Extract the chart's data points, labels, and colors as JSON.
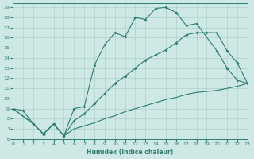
{
  "xlabel": "Humidex (Indice chaleur)",
  "bg_color": "#cde8e5",
  "grid_color": "#b0d0cc",
  "line_color": "#2e7d6e",
  "xlim": [
    0,
    23
  ],
  "ylim": [
    6,
    19.4
  ],
  "xticks": [
    0,
    1,
    2,
    3,
    4,
    5,
    6,
    7,
    8,
    9,
    10,
    11,
    12,
    13,
    14,
    15,
    16,
    17,
    18,
    19,
    20,
    21,
    22,
    23
  ],
  "yticks": [
    6,
    7,
    8,
    9,
    10,
    11,
    12,
    13,
    14,
    15,
    16,
    17,
    18,
    19
  ],
  "series": [
    {
      "x": [
        0,
        1,
        2,
        3,
        4,
        5,
        6,
        7,
        8,
        9,
        10,
        11,
        12,
        13,
        14,
        15,
        16,
        17,
        18,
        20,
        21,
        22,
        23
      ],
      "y": [
        9.0,
        8.8,
        7.5,
        6.5,
        7.5,
        6.3,
        9.0,
        9.2,
        13.3,
        15.3,
        16.5,
        16.1,
        18.0,
        17.8,
        18.9,
        19.0,
        18.5,
        17.2,
        17.4,
        14.7,
        13.0,
        11.8,
        11.5
      ],
      "marker": true
    },
    {
      "x": [
        0,
        2,
        3,
        4,
        5,
        6,
        7,
        8,
        9,
        10,
        11,
        12,
        13,
        14,
        15,
        16,
        17,
        18,
        19,
        20,
        21,
        22,
        23
      ],
      "y": [
        9.0,
        7.5,
        6.5,
        7.5,
        6.3,
        7.8,
        8.5,
        9.5,
        10.5,
        11.5,
        12.2,
        13.0,
        13.8,
        14.3,
        14.8,
        15.5,
        16.3,
        16.5,
        16.5,
        16.5,
        14.7,
        13.5,
        11.5
      ],
      "marker": true
    },
    {
      "x": [
        0,
        2,
        3,
        4,
        5,
        6,
        7,
        8,
        9,
        10,
        11,
        12,
        13,
        14,
        15,
        16,
        17,
        18,
        19,
        20,
        21,
        22,
        23
      ],
      "y": [
        9.0,
        7.5,
        6.5,
        7.5,
        6.3,
        7.0,
        7.3,
        7.6,
        8.0,
        8.3,
        8.7,
        9.0,
        9.3,
        9.6,
        9.9,
        10.1,
        10.4,
        10.6,
        10.7,
        10.8,
        11.0,
        11.2,
        11.5
      ],
      "marker": false
    }
  ]
}
